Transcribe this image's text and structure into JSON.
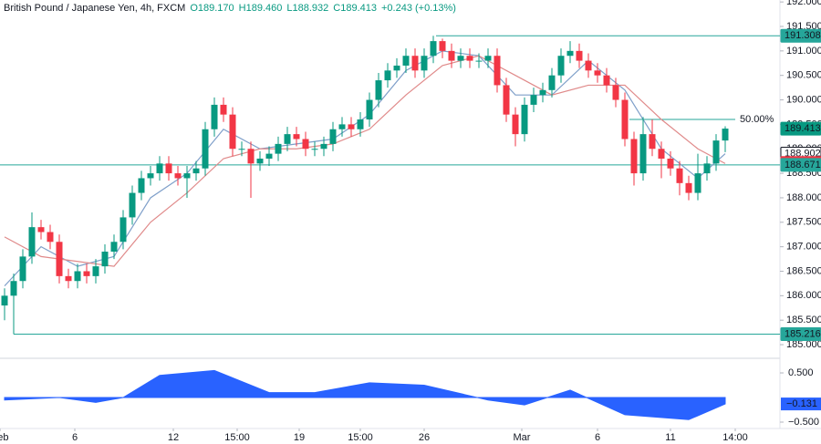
{
  "chart_data": [
    {
      "type": "candlestick",
      "title": "British Pound / Japanese Yen, 4h, FXCM",
      "legend_values": [
        "O189.170",
        "H189.460",
        "L188.932",
        "C189.413",
        "+0.243 (+0.13%)"
      ],
      "up_color": "#089981",
      "down_color": "#f23645",
      "open": [
        185.8,
        186.0,
        186.3,
        186.8,
        187.4,
        187.3,
        187.1,
        186.4,
        186.3,
        186.5,
        186.4,
        186.6,
        186.9,
        187.1,
        187.6,
        188.1,
        188.4,
        188.5,
        188.7,
        188.5,
        188.4,
        188.5,
        188.6,
        189.4,
        189.9,
        189.7,
        189.0,
        189.0,
        188.7,
        188.8,
        188.9,
        189.1,
        189.3,
        189.2,
        189.0,
        189.0,
        189.1,
        189.4,
        189.5,
        189.4,
        189.6,
        190.0,
        190.4,
        190.6,
        190.7,
        190.9,
        190.6,
        190.9,
        191.2,
        191.0,
        190.8,
        190.9,
        190.8,
        190.8,
        190.9,
        190.3,
        189.7,
        189.3,
        189.9,
        190.1,
        190.2,
        190.5,
        190.9,
        191.0,
        190.8,
        190.6,
        190.5,
        190.3,
        190.0,
        189.2,
        188.5,
        189.3,
        189.0,
        188.8,
        188.6,
        188.3,
        188.1,
        188.5,
        188.7,
        189.17
      ],
      "high": [
        186.15,
        186.45,
        186.95,
        187.7,
        187.55,
        187.45,
        187.25,
        186.55,
        186.65,
        186.65,
        186.75,
        187.05,
        187.25,
        187.75,
        188.25,
        188.55,
        188.65,
        188.85,
        188.85,
        188.65,
        188.65,
        188.75,
        189.55,
        190.05,
        190.05,
        189.85,
        189.15,
        189.15,
        188.95,
        189.05,
        189.25,
        189.45,
        189.45,
        189.35,
        189.15,
        189.25,
        189.55,
        189.65,
        189.65,
        189.75,
        190.15,
        190.55,
        190.75,
        190.85,
        191.05,
        191.05,
        191.05,
        191.308,
        191.25,
        191.15,
        191.05,
        191.05,
        190.95,
        191.05,
        191.05,
        190.45,
        189.85,
        190.05,
        190.25,
        190.35,
        190.65,
        191.05,
        191.2,
        191.15,
        190.95,
        190.75,
        190.65,
        190.45,
        190.15,
        189.35,
        189.65,
        189.6,
        189.15,
        188.95,
        188.75,
        188.45,
        188.9,
        188.85,
        189.3,
        189.46
      ],
      "low": [
        185.5,
        185.216,
        186.15,
        186.65,
        187.15,
        186.95,
        186.25,
        186.15,
        186.15,
        186.25,
        186.25,
        186.45,
        186.75,
        186.95,
        187.45,
        187.95,
        188.25,
        188.35,
        188.35,
        188.25,
        188.0,
        188.35,
        188.45,
        189.25,
        189.55,
        188.85,
        188.85,
        188.0,
        188.55,
        188.65,
        188.75,
        188.95,
        189.05,
        188.85,
        188.85,
        188.85,
        188.95,
        189.25,
        189.25,
        189.25,
        189.45,
        189.85,
        190.25,
        190.45,
        190.55,
        190.45,
        190.45,
        190.75,
        190.85,
        190.65,
        190.65,
        190.65,
        190.65,
        190.65,
        190.15,
        189.55,
        189.05,
        189.15,
        189.75,
        189.95,
        190.05,
        190.35,
        190.75,
        190.65,
        190.45,
        190.35,
        190.15,
        189.85,
        189.05,
        188.25,
        188.35,
        188.85,
        188.4,
        188.45,
        188.05,
        187.95,
        187.95,
        188.35,
        188.55,
        188.932
      ],
      "close": [
        186.0,
        186.3,
        186.8,
        187.4,
        187.3,
        187.1,
        186.4,
        186.3,
        186.5,
        186.4,
        186.6,
        186.9,
        187.1,
        187.6,
        188.1,
        188.4,
        188.5,
        188.7,
        188.5,
        188.4,
        188.5,
        188.6,
        189.4,
        189.9,
        189.7,
        189.0,
        189.0,
        188.7,
        188.8,
        188.9,
        189.1,
        189.3,
        189.2,
        189.0,
        189.0,
        189.1,
        189.4,
        189.5,
        189.4,
        189.6,
        190.0,
        190.4,
        190.6,
        190.7,
        190.9,
        190.6,
        190.9,
        191.2,
        191.0,
        190.8,
        190.9,
        190.8,
        190.8,
        190.9,
        190.3,
        189.7,
        189.3,
        189.9,
        190.1,
        190.2,
        190.5,
        190.9,
        191.0,
        190.8,
        190.6,
        190.5,
        190.3,
        190.0,
        189.2,
        188.5,
        189.3,
        189.0,
        188.8,
        188.6,
        188.3,
        188.1,
        188.5,
        188.7,
        189.17,
        189.413
      ],
      "moving_averages": [
        {
          "color": "#7e9fc9",
          "x": [
            0,
            4,
            8,
            12,
            16,
            20,
            24,
            28,
            32,
            36,
            40,
            44,
            48,
            52,
            56,
            60,
            64,
            68,
            72,
            76,
            79
          ],
          "values": [
            186.2,
            187.0,
            186.6,
            186.8,
            188.0,
            188.5,
            189.4,
            189.0,
            189.1,
            189.2,
            189.7,
            190.6,
            191.0,
            190.9,
            190.1,
            190.1,
            190.8,
            190.2,
            189.0,
            188.4,
            188.9
          ]
        },
        {
          "color": "#e08a8a",
          "x": [
            0,
            4,
            8,
            12,
            16,
            20,
            24,
            28,
            32,
            36,
            40,
            44,
            48,
            52,
            56,
            60,
            64,
            68,
            72,
            76,
            79
          ],
          "values": [
            187.2,
            186.8,
            186.7,
            186.6,
            187.5,
            188.1,
            188.8,
            189.0,
            189.0,
            189.1,
            189.4,
            190.1,
            190.7,
            190.9,
            190.5,
            190.1,
            190.3,
            190.3,
            189.6,
            189.0,
            188.7
          ]
        }
      ],
      "levels": [
        {
          "value": 191.308,
          "color": "#26a69a"
        },
        {
          "value": 188.671,
          "color": "#26a69a"
        },
        {
          "value": 185.216,
          "color": "#26a69a"
        }
      ],
      "fib": {
        "value": 189.6,
        "label": "50.00%",
        "color": "#26a69a"
      },
      "price_labels": [
        {
          "value": 191.308,
          "color": "#26a69a",
          "text_color": "#ffffff"
        },
        {
          "value": 189.413,
          "color": "#089981",
          "text_color": "#ffffff"
        },
        {
          "value": 188.902,
          "color": "#ffffff",
          "text_color": "#131722"
        },
        {
          "value": 188.712,
          "color": "#f23645",
          "text_color": "#ffffff"
        },
        {
          "value": 188.671,
          "color": "#26a69a",
          "text_color": "#ffffff"
        },
        {
          "value": 185.216,
          "color": "#26a69a",
          "text_color": "#ffffff"
        }
      ],
      "ylim": [
        184.74,
        192.04
      ],
      "yticks": [
        {
          "value": 192,
          "label": "192.000"
        },
        {
          "value": 191.5,
          "label": "191.500"
        },
        {
          "value": 191,
          "label": "191.000"
        },
        {
          "value": 190.5,
          "label": "190.500"
        },
        {
          "value": 190,
          "label": "190.000"
        },
        {
          "value": 189.5,
          "label": "189.500"
        },
        {
          "value": 189,
          "label": "189.000"
        },
        {
          "value": 188.5,
          "label": "188.500"
        },
        {
          "value": 188,
          "label": "188.000"
        },
        {
          "value": 187.5,
          "label": "187.500"
        },
        {
          "value": 187,
          "label": "187.000"
        },
        {
          "value": 186.5,
          "label": "186.500"
        },
        {
          "value": 186,
          "label": "186.000"
        },
        {
          "value": 185.5,
          "label": "185.500"
        },
        {
          "value": 185,
          "label": "185.000"
        }
      ]
    },
    {
      "type": "area",
      "x": [
        0,
        6,
        10,
        13,
        17,
        23,
        29,
        34,
        40,
        46,
        53,
        57,
        62,
        68,
        75,
        79
      ],
      "values": [
        -0.05,
        0.0,
        -0.1,
        0.0,
        0.45,
        0.55,
        0.1,
        0.1,
        0.3,
        0.25,
        -0.05,
        -0.15,
        0.15,
        -0.35,
        -0.45,
        -0.131
      ],
      "color": "#2962ff",
      "ylim": [
        -0.63,
        0.76
      ],
      "yticks": [
        {
          "value": 0.5,
          "label": "0.500"
        },
        {
          "value": -0.5,
          "label": "−0.500"
        }
      ],
      "price_label": {
        "value": -0.131,
        "label": "−0.131"
      },
      "xticks": [
        {
          "value": -0.5,
          "label": "Feb"
        },
        {
          "value": 7.7,
          "label": "6"
        },
        {
          "value": 18.5,
          "label": "12"
        },
        {
          "value": 25.5,
          "label": "15:00"
        },
        {
          "value": 32.3,
          "label": "19"
        },
        {
          "value": 39,
          "label": "15:00"
        },
        {
          "value": 46,
          "label": "26"
        },
        {
          "value": 56.7,
          "label": "Mar"
        },
        {
          "value": 65,
          "label": "6"
        },
        {
          "value": 73,
          "label": "11"
        },
        {
          "value": 80.1,
          "label": "14:00"
        }
      ]
    }
  ]
}
